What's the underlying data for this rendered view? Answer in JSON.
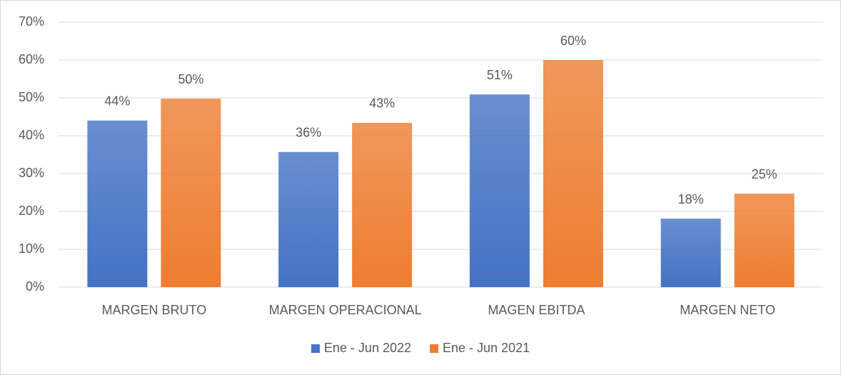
{
  "chart_data": {
    "type": "bar",
    "categories": [
      "MARGEN BRUTO",
      "MARGEN OPERACIONAL",
      "MAGEN EBITDA",
      "MARGEN NETO"
    ],
    "series": [
      {
        "name": "Ene - Jun 2022",
        "color": "#4472c4",
        "values": [
          44,
          35.7,
          50.9,
          18.1
        ],
        "value_labels": [
          "44%",
          "36%",
          "51%",
          "18%"
        ]
      },
      {
        "name": "Ene - Jun 2021",
        "color": "#ed7d31",
        "values": [
          49.8,
          43.4,
          60,
          24.7
        ],
        "value_labels": [
          "50%",
          "43%",
          "60%",
          "25%"
        ]
      }
    ],
    "ylim": [
      0,
      70
    ],
    "yticks": [
      {
        "value": 0,
        "label": "0%"
      },
      {
        "value": 10,
        "label": "10%"
      },
      {
        "value": 20,
        "label": "20%"
      },
      {
        "value": 30,
        "label": "30%"
      },
      {
        "value": 40,
        "label": "40%"
      },
      {
        "value": 50,
        "label": "50%"
      },
      {
        "value": 60,
        "label": "60%"
      },
      {
        "value": 70,
        "label": "70%"
      }
    ],
    "grid": true,
    "legend": "bottom"
  }
}
